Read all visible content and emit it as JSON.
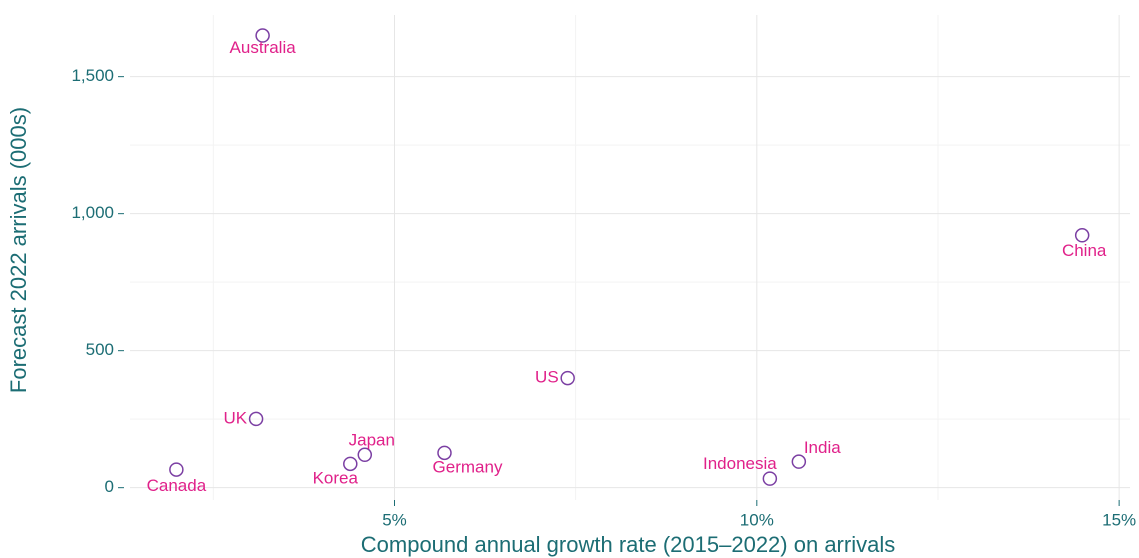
{
  "chart_data": {
    "type": "scatter",
    "x_label": "Compound annual growth rate (2015–2022) on arrivals",
    "y_label": "Forecast 2022 arrivals (000s)",
    "labels": [
      "Australia",
      "China",
      "US",
      "UK",
      "Canada",
      "Korea",
      "Japan",
      "Germany",
      "Indonesia",
      "India"
    ],
    "x": [
      3.18,
      14.49,
      7.39,
      3.09,
      1.99,
      4.39,
      4.59,
      5.69,
      10.18,
      10.58
    ],
    "values": [
      1650,
      921,
      400,
      251,
      66,
      87,
      120,
      127,
      33,
      95
    ],
    "color": "#7b3fa3",
    "label_color": "#e0218a",
    "xlim": [
      1.35,
      15.15
    ],
    "ylim": [
      -45,
      1725
    ],
    "xticks": [
      {
        "value": 5,
        "label": "5%"
      },
      {
        "value": 10,
        "label": "10%"
      },
      {
        "value": 15,
        "label": "15%"
      }
    ],
    "yticks": [
      {
        "value": 0,
        "label": "0"
      },
      {
        "value": 500,
        "label": "500"
      },
      {
        "value": 1000,
        "label": "1,000"
      },
      {
        "value": 1500,
        "label": "1,500"
      }
    ],
    "x_minor_grid": [
      2.5,
      7.5,
      12.5
    ],
    "y_minor_grid": [
      250,
      750,
      1250
    ],
    "grid": true
  }
}
